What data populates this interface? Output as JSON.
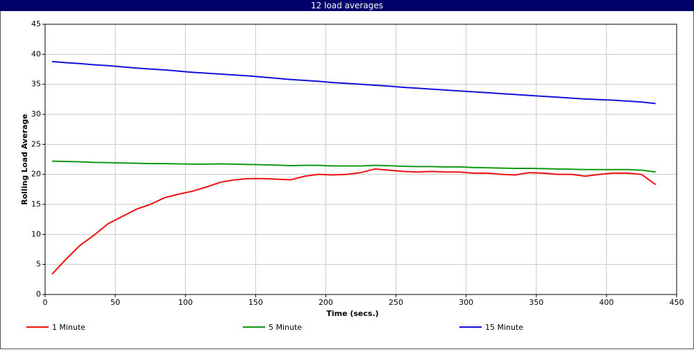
{
  "window_title": "12 load averages",
  "chart_data": {
    "type": "line",
    "x_label": "Time (secs.)",
    "y_label": "Rolling Load Average",
    "xlim": [
      0,
      450
    ],
    "xticks": [
      0,
      50,
      100,
      150,
      200,
      250,
      300,
      350,
      400,
      450
    ],
    "ylim": [
      0,
      45
    ],
    "yticks": [
      0,
      5,
      10,
      15,
      20,
      25,
      30,
      35,
      40,
      45
    ],
    "grid": true,
    "legend": "bottom",
    "x": [
      5,
      15,
      25,
      35,
      45,
      55,
      65,
      75,
      85,
      95,
      105,
      115,
      125,
      135,
      145,
      155,
      165,
      175,
      185,
      195,
      205,
      215,
      225,
      235,
      245,
      255,
      265,
      275,
      285,
      295,
      305,
      315,
      325,
      335,
      345,
      355,
      365,
      375,
      385,
      395,
      405,
      415,
      425,
      435
    ],
    "series": [
      {
        "name": "1 Minute",
        "color": "#ee1111",
        "values": [
          3.4,
          5.9,
          8.2,
          9.9,
          11.8,
          13.0,
          14.2,
          15.0,
          16.1,
          16.7,
          17.2,
          17.9,
          18.7,
          19.1,
          19.3,
          19.3,
          19.2,
          19.1,
          19.7,
          20.0,
          19.9,
          20.0,
          20.3,
          20.9,
          20.7,
          20.5,
          20.4,
          20.5,
          20.4,
          20.4,
          20.2,
          20.2,
          20.0,
          19.9,
          20.3,
          20.2,
          20.0,
          20.0,
          19.7,
          20.0,
          20.2,
          20.2,
          20.0,
          18.3
        ]
      },
      {
        "name": "5 Minute",
        "color": "#119911",
        "values": [
          22.2,
          22.15,
          22.1,
          22.0,
          21.95,
          21.9,
          21.85,
          21.8,
          21.8,
          21.75,
          21.7,
          21.7,
          21.75,
          21.7,
          21.65,
          21.6,
          21.55,
          21.45,
          21.5,
          21.5,
          21.4,
          21.4,
          21.4,
          21.5,
          21.45,
          21.35,
          21.3,
          21.3,
          21.25,
          21.25,
          21.15,
          21.1,
          21.05,
          21.0,
          21.0,
          20.95,
          20.9,
          20.85,
          20.8,
          20.8,
          20.8,
          20.8,
          20.7,
          20.4
        ]
      },
      {
        "name": "15 Minute",
        "color": "#1111dd",
        "values": [
          38.8,
          38.6,
          38.45,
          38.25,
          38.1,
          37.9,
          37.7,
          37.55,
          37.4,
          37.2,
          37.0,
          36.85,
          36.7,
          36.55,
          36.4,
          36.2,
          36.0,
          35.8,
          35.65,
          35.5,
          35.3,
          35.15,
          35.0,
          34.85,
          34.7,
          34.5,
          34.35,
          34.2,
          34.05,
          33.9,
          33.75,
          33.6,
          33.45,
          33.3,
          33.15,
          33.0,
          32.85,
          32.7,
          32.55,
          32.45,
          32.35,
          32.2,
          32.05,
          31.8
        ]
      }
    ]
  }
}
